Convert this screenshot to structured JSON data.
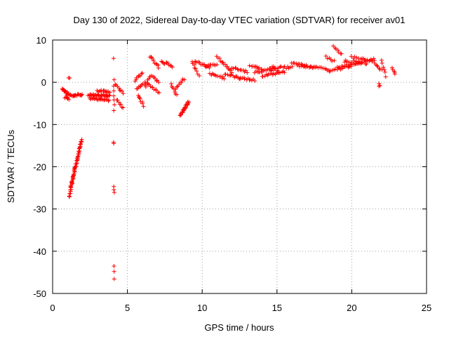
{
  "chart_data": {
    "type": "scatter",
    "title": "Day 130 of 2022, Sidereal Day-to-day VTEC variation (SDTVAR) for receiver av01",
    "xlabel": "GPS time / hours",
    "ylabel": "SDTVAR / TECUs",
    "xlim": [
      0,
      25
    ],
    "ylim": [
      -50,
      10
    ],
    "xticks": [
      0,
      5,
      10,
      15,
      20,
      25
    ],
    "yticks": [
      -50,
      -40,
      -30,
      -20,
      -10,
      0,
      10
    ],
    "xtick_labels": [
      "0",
      "5",
      "10",
      "15",
      "20",
      "25"
    ],
    "ytick_labels": [
      "-50",
      "-40",
      "-30",
      "-20",
      "-10",
      "0",
      "10"
    ],
    "grid": true,
    "marker": "+",
    "color": "#ff0000",
    "segments": [
      {
        "x0": 0.65,
        "x1": 0.95,
        "y0": -1.5,
        "y1": -2.5,
        "n": 12
      },
      {
        "x0": 0.95,
        "x1": 1.5,
        "y0": -2.8,
        "y1": -3.2,
        "n": 14
      },
      {
        "x0": 1.5,
        "x1": 2.0,
        "y0": -3.0,
        "y1": -3.0,
        "n": 10
      },
      {
        "x0": 0.8,
        "x1": 1.1,
        "y0": -3.6,
        "y1": -4.0,
        "n": 6
      },
      {
        "x0": 1.08,
        "x1": 1.12,
        "y0": 1.2,
        "y1": 0.9,
        "n": 2
      },
      {
        "x0": 1.1,
        "x1": 1.9,
        "y0": -27.0,
        "y1": -14.0,
        "n": 45
      },
      {
        "x0": 1.2,
        "x1": 1.95,
        "y0": -25.0,
        "y1": -13.5,
        "n": 25
      },
      {
        "x0": 2.4,
        "x1": 3.8,
        "y0": -3.0,
        "y1": -3.2,
        "n": 30
      },
      {
        "x0": 2.5,
        "x1": 3.8,
        "y0": -3.8,
        "y1": -4.2,
        "n": 20
      },
      {
        "x0": 3.0,
        "x1": 3.8,
        "y0": -2.0,
        "y1": -2.3,
        "n": 12
      },
      {
        "x0": 4.1,
        "x1": 4.1,
        "y0": 5.6,
        "y1": 5.6,
        "n": 1
      },
      {
        "x0": 4.1,
        "x1": 4.1,
        "y0": 0.5,
        "y1": -6.5,
        "n": 7
      },
      {
        "x0": 4.1,
        "x1": 4.1,
        "y0": -14.0,
        "y1": -14.3,
        "n": 2
      },
      {
        "x0": 4.1,
        "x1": 4.1,
        "y0": -24.5,
        "y1": -26.0,
        "n": 3
      },
      {
        "x0": 4.1,
        "x1": 4.1,
        "y0": -43.5,
        "y1": -46.5,
        "n": 3
      },
      {
        "x0": 4.2,
        "x1": 4.7,
        "y0": -0.5,
        "y1": -2.5,
        "n": 8
      },
      {
        "x0": 4.3,
        "x1": 4.7,
        "y0": -4.0,
        "y1": -6.0,
        "n": 7
      },
      {
        "x0": 5.5,
        "x1": 6.0,
        "y0": 0.5,
        "y1": 2.0,
        "n": 8
      },
      {
        "x0": 5.6,
        "x1": 6.2,
        "y0": -1.5,
        "y1": 0.0,
        "n": 9
      },
      {
        "x0": 5.7,
        "x1": 6.1,
        "y0": -3.0,
        "y1": -5.5,
        "n": 8
      },
      {
        "x0": 6.2,
        "x1": 6.5,
        "y0": -1.0,
        "y1": 1.5,
        "n": 6
      },
      {
        "x0": 6.5,
        "x1": 7.1,
        "y0": 6.2,
        "y1": 3.5,
        "n": 10
      },
      {
        "x0": 6.4,
        "x1": 7.1,
        "y0": -0.5,
        "y1": -2.5,
        "n": 10
      },
      {
        "x0": 6.6,
        "x1": 7.1,
        "y0": 1.5,
        "y1": 0.0,
        "n": 7
      },
      {
        "x0": 7.3,
        "x1": 7.5,
        "y0": 5.0,
        "y1": 4.5,
        "n": 4
      },
      {
        "x0": 7.6,
        "x1": 8.0,
        "y0": 4.8,
        "y1": 3.8,
        "n": 7
      },
      {
        "x0": 7.9,
        "x1": 8.3,
        "y0": -0.5,
        "y1": -3.0,
        "n": 7
      },
      {
        "x0": 8.2,
        "x1": 8.8,
        "y0": -1.5,
        "y1": 0.8,
        "n": 9
      },
      {
        "x0": 8.5,
        "x1": 9.1,
        "y0": -8.0,
        "y1": -4.5,
        "n": 14
      },
      {
        "x0": 8.6,
        "x1": 9.1,
        "y0": -7.5,
        "y1": -5.0,
        "n": 8
      },
      {
        "x0": 9.3,
        "x1": 9.8,
        "y0": 5.0,
        "y1": 1.5,
        "n": 8
      },
      {
        "x0": 9.5,
        "x1": 10.5,
        "y0": 5.0,
        "y1": 3.5,
        "n": 14
      },
      {
        "x0": 10.3,
        "x1": 11.0,
        "y0": 4.0,
        "y1": 4.0,
        "n": 8
      },
      {
        "x0": 10.5,
        "x1": 11.5,
        "y0": 2.0,
        "y1": 1.0,
        "n": 12
      },
      {
        "x0": 11.0,
        "x1": 12.0,
        "y0": 6.0,
        "y1": 2.5,
        "n": 14
      },
      {
        "x0": 11.5,
        "x1": 12.5,
        "y0": 2.0,
        "y1": 1.0,
        "n": 12
      },
      {
        "x0": 12.0,
        "x1": 13.0,
        "y0": 3.5,
        "y1": 2.5,
        "n": 12
      },
      {
        "x0": 12.5,
        "x1": 13.5,
        "y0": 1.0,
        "y1": 0.5,
        "n": 12
      },
      {
        "x0": 13.2,
        "x1": 14.0,
        "y0": 4.0,
        "y1": 3.0,
        "n": 10
      },
      {
        "x0": 13.5,
        "x1": 15.0,
        "y0": 2.5,
        "y1": 3.0,
        "n": 18
      },
      {
        "x0": 14.0,
        "x1": 15.5,
        "y0": 1.5,
        "y1": 2.5,
        "n": 18
      },
      {
        "x0": 14.5,
        "x1": 16.0,
        "y0": 3.5,
        "y1": 3.5,
        "n": 16
      },
      {
        "x0": 16.0,
        "x1": 17.5,
        "y0": 4.5,
        "y1": 3.5,
        "n": 18
      },
      {
        "x0": 16.5,
        "x1": 18.5,
        "y0": 4.0,
        "y1": 3.0,
        "n": 20
      },
      {
        "x0": 18.3,
        "x1": 18.8,
        "y0": 6.0,
        "y1": 5.0,
        "n": 6
      },
      {
        "x0": 18.8,
        "x1": 19.3,
        "y0": 8.5,
        "y1": 6.5,
        "n": 7
      },
      {
        "x0": 18.5,
        "x1": 20.5,
        "y0": 2.5,
        "y1": 4.5,
        "n": 20
      },
      {
        "x0": 19.0,
        "x1": 21.5,
        "y0": 3.5,
        "y1": 5.5,
        "n": 24
      },
      {
        "x0": 19.5,
        "x1": 21.0,
        "y0": 5.0,
        "y1": 4.5,
        "n": 16
      },
      {
        "x0": 20.0,
        "x1": 21.5,
        "y0": 6.0,
        "y1": 5.0,
        "n": 14
      },
      {
        "x0": 21.5,
        "x1": 22.0,
        "y0": 4.5,
        "y1": 3.0,
        "n": 7
      },
      {
        "x0": 21.8,
        "x1": 21.9,
        "y0": -0.5,
        "y1": -1.0,
        "n": 3
      },
      {
        "x0": 22.0,
        "x1": 22.3,
        "y0": 5.0,
        "y1": 1.5,
        "n": 6
      },
      {
        "x0": 22.7,
        "x1": 22.9,
        "y0": 3.5,
        "y1": 2.0,
        "n": 5
      }
    ]
  }
}
